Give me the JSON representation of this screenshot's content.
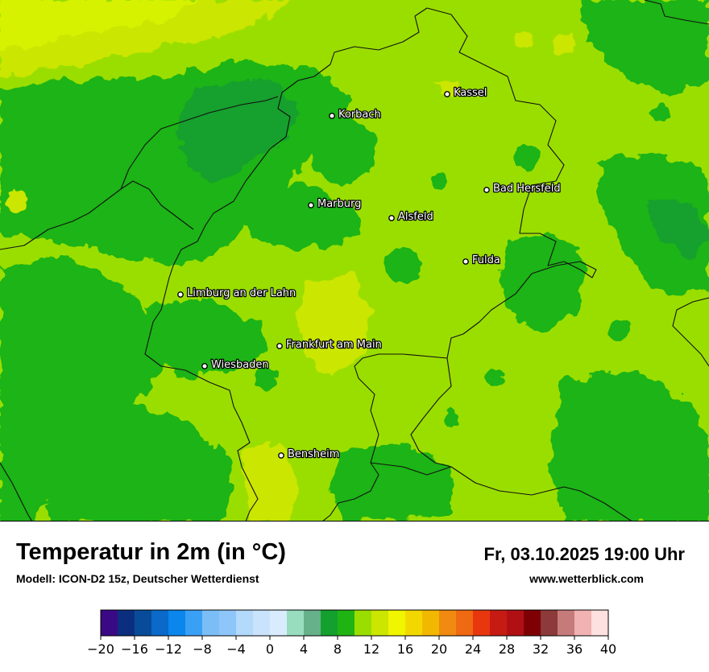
{
  "title": "Temperatur in 2m (in °C)",
  "subtitle": "Modell: ICON-D2 15z, Deutscher Wetterdienst",
  "datetime": "Fr, 03.10.2025 19:00 Uhr",
  "website": "www.wetterblick.com",
  "cities": [
    {
      "name": "Kassel"
    },
    {
      "name": "Korbach"
    },
    {
      "name": "Bad Hersfeld"
    },
    {
      "name": "Marburg"
    },
    {
      "name": "Alsfeld"
    },
    {
      "name": "Fulda"
    },
    {
      "name": "Limburg an der Lahn"
    },
    {
      "name": "Frankfurt am Main"
    },
    {
      "name": "Wiesbaden"
    },
    {
      "name": "Bensheim"
    }
  ],
  "colorbar": {
    "min": -20,
    "max": 40,
    "step": 2,
    "tick_labels": [
      "−20",
      "−16",
      "−12",
      "−8",
      "−4",
      "0",
      "4",
      "8",
      "12",
      "16",
      "20",
      "24",
      "28",
      "32",
      "36",
      "40"
    ],
    "colors": [
      "#3a0a85",
      "#0b2f7e",
      "#084c99",
      "#0a69c9",
      "#0a86ec",
      "#3aa0f5",
      "#7bbef7",
      "#8fc6f9",
      "#b3d9fb",
      "#c9e3fc",
      "#d9ecfd",
      "#99ddbf",
      "#66b08a",
      "#14a02f",
      "#1fb413",
      "#9ade00",
      "#cbe600",
      "#f0f500",
      "#f2d800",
      "#f2b700",
      "#f08a10",
      "#ef6912",
      "#e8370f",
      "#c51b13",
      "#b01014",
      "#7e0005",
      "#8d3a3a",
      "#c67b7b",
      "#f1b2b2",
      "#fde0e0"
    ]
  },
  "map_colors": {
    "lime": "#9ade00",
    "dark_green": "#1fb413",
    "deep_green": "#14a02f",
    "yellow_green": "#cbe600",
    "bright_yellow": "#d6f200"
  }
}
